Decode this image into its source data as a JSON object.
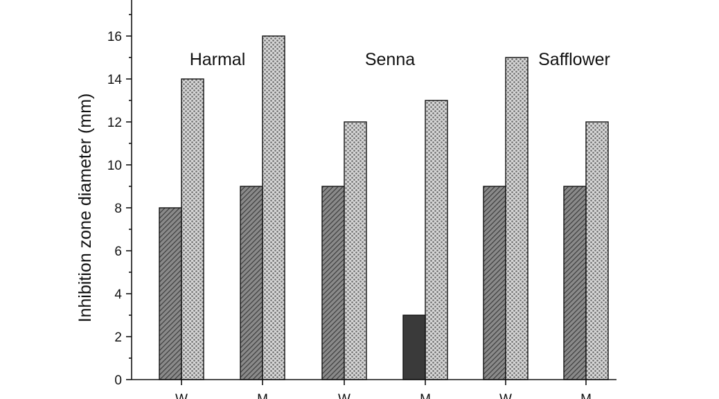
{
  "chart_data": {
    "type": "bar",
    "title": "",
    "xlabel": "",
    "ylabel": "Inhibition zone diameter (mm)",
    "ylim": [
      0,
      17.5
    ],
    "yticks": [
      0,
      2,
      4,
      6,
      8,
      10,
      12,
      14,
      16
    ],
    "categories": [
      "W",
      "M",
      "W",
      "M",
      "W",
      "M"
    ],
    "group_labels": [
      "Harmal",
      "Senna",
      "Safflower"
    ],
    "series": [
      {
        "values": [
          8,
          9,
          9,
          null,
          9,
          9
        ],
        "color": "#6b6b6b",
        "pattern": "diagonal-hatch"
      },
      {
        "values": [
          14,
          16,
          12,
          13,
          15,
          12
        ],
        "color": "#c9c9c9",
        "pattern": "crosshatch"
      },
      {
        "values": [
          null,
          null,
          null,
          3,
          null,
          null
        ],
        "color": "#3a3a3a",
        "pattern": "solid"
      }
    ],
    "grid": false,
    "legend": "none"
  }
}
